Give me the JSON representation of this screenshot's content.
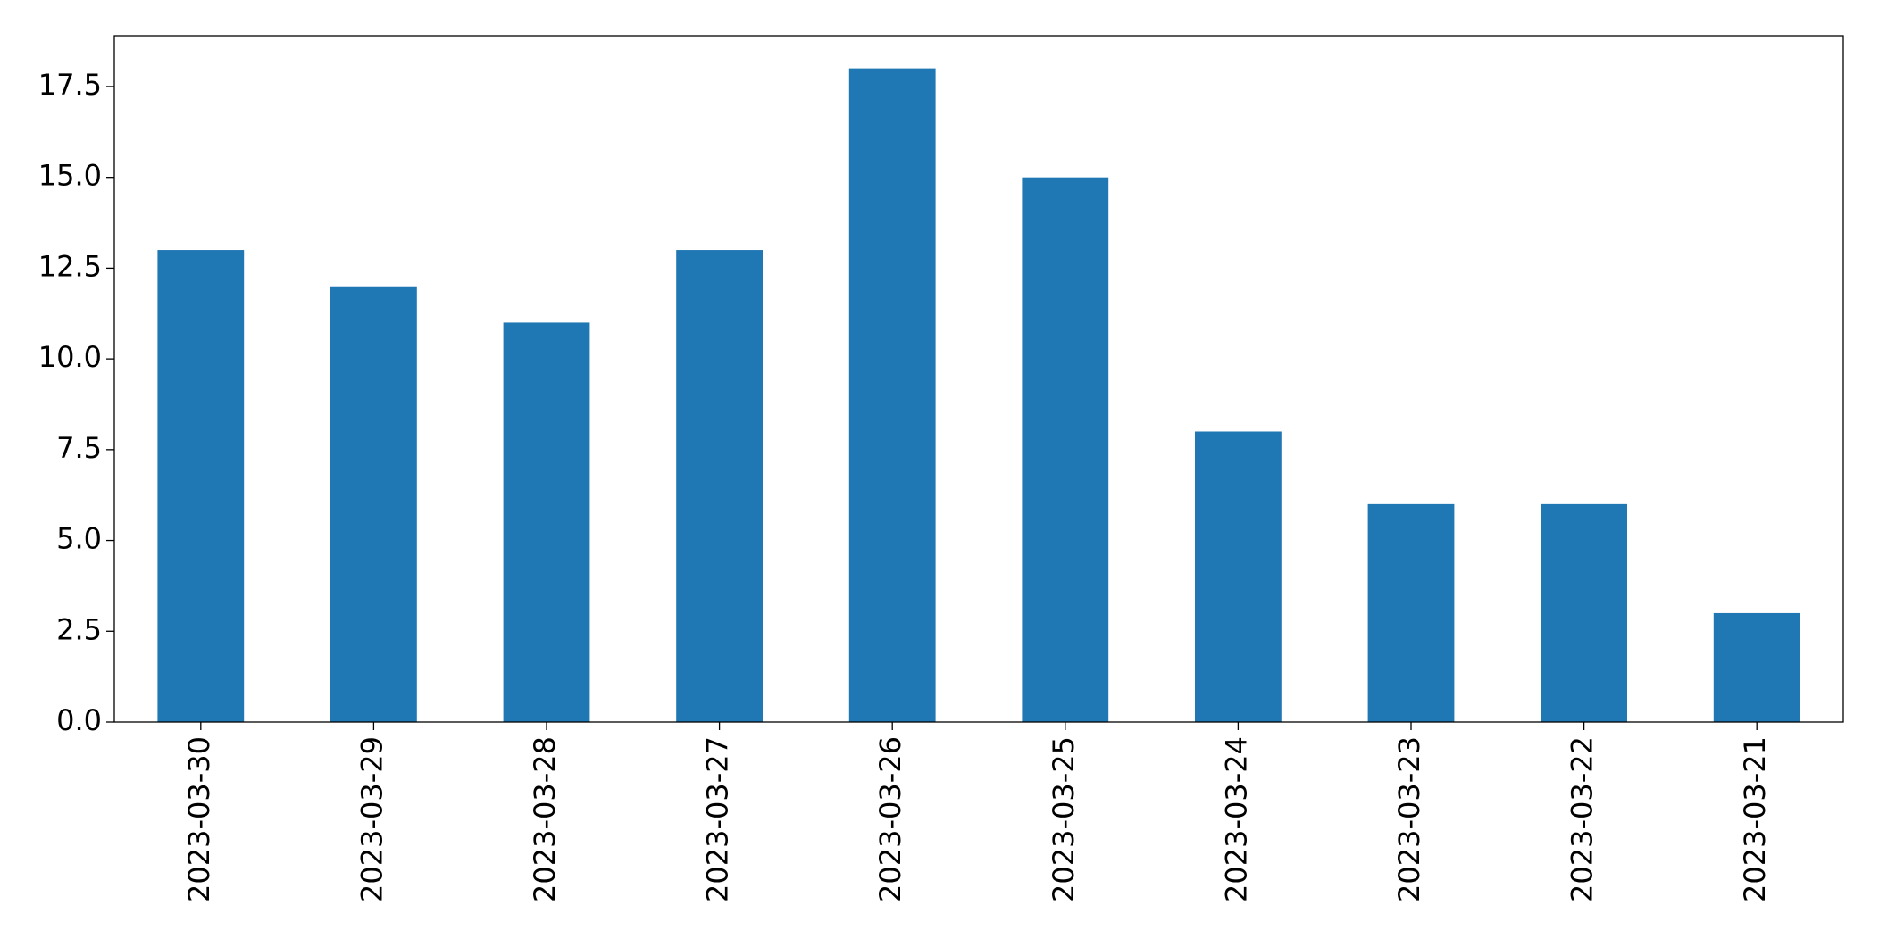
{
  "chart_data": {
    "type": "bar",
    "categories": [
      "2023-03-30",
      "2023-03-29",
      "2023-03-28",
      "2023-03-27",
      "2023-03-26",
      "2023-03-25",
      "2023-03-24",
      "2023-03-23",
      "2023-03-22",
      "2023-03-21"
    ],
    "values": [
      13,
      12,
      11,
      13,
      18,
      15,
      8,
      6,
      6,
      3
    ],
    "color": "#1f77b4",
    "ylim": [
      0,
      18.9
    ],
    "yticks": [
      {
        "value": 0,
        "label": "0.0"
      },
      {
        "value": 2.5,
        "label": "2.5"
      },
      {
        "value": 5,
        "label": "5.0"
      },
      {
        "value": 7.5,
        "label": "7.5"
      },
      {
        "value": 10,
        "label": "10.0"
      },
      {
        "value": 12.5,
        "label": "12.5"
      },
      {
        "value": 15,
        "label": "15.0"
      },
      {
        "value": 17.5,
        "label": "17.5"
      }
    ],
    "grid": false
  }
}
